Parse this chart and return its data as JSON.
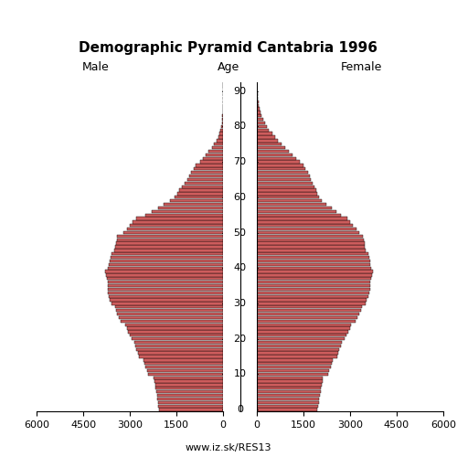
{
  "title": "Demographic Pyramid Cantabria 1996",
  "xlabel_left": "Male",
  "xlabel_right": "Female",
  "age_label": "Age",
  "footer": "www.iz.sk/RES13",
  "bar_color": "#CD5C5C",
  "bar_edge_color": "#000000",
  "male": [
    2050,
    2080,
    2100,
    2120,
    2130,
    2150,
    2170,
    2190,
    2210,
    2230,
    2400,
    2450,
    2490,
    2530,
    2560,
    2700,
    2750,
    2790,
    2830,
    2860,
    2950,
    3000,
    3050,
    3100,
    3150,
    3300,
    3350,
    3400,
    3450,
    3480,
    3600,
    3650,
    3680,
    3700,
    3720,
    3700,
    3720,
    3750,
    3780,
    3800,
    3700,
    3680,
    3650,
    3620,
    3600,
    3500,
    3480,
    3450,
    3420,
    3400,
    3200,
    3100,
    3000,
    2900,
    2800,
    2500,
    2300,
    2100,
    1900,
    1700,
    1550,
    1480,
    1400,
    1320,
    1240,
    1160,
    1090,
    1020,
    950,
    880,
    750,
    650,
    550,
    460,
    370,
    290,
    220,
    165,
    120,
    85,
    60,
    42,
    30,
    20,
    13,
    8,
    5,
    3,
    2,
    1,
    1,
    0,
    0
  ],
  "female": [
    1950,
    1970,
    1990,
    2010,
    2030,
    2050,
    2070,
    2090,
    2110,
    2130,
    2290,
    2330,
    2370,
    2410,
    2450,
    2580,
    2620,
    2660,
    2700,
    2740,
    2840,
    2890,
    2940,
    2990,
    3040,
    3190,
    3240,
    3290,
    3340,
    3380,
    3500,
    3540,
    3580,
    3620,
    3650,
    3640,
    3660,
    3690,
    3720,
    3750,
    3680,
    3660,
    3640,
    3620,
    3600,
    3500,
    3480,
    3460,
    3440,
    3420,
    3300,
    3200,
    3100,
    3000,
    2900,
    2700,
    2550,
    2400,
    2250,
    2100,
    2000,
    1950,
    1900,
    1850,
    1800,
    1750,
    1700,
    1640,
    1570,
    1490,
    1380,
    1270,
    1160,
    1040,
    920,
    800,
    690,
    590,
    490,
    400,
    330,
    270,
    215,
    165,
    125,
    92,
    68,
    50,
    35,
    24,
    16,
    10,
    6
  ],
  "xlim": 6000,
  "xticks": [
    6000,
    4500,
    3000,
    1500,
    0
  ],
  "ytick_step": 10,
  "max_age": 96
}
